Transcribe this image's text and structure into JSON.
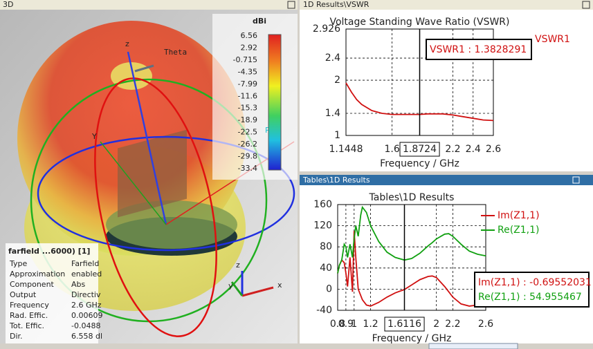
{
  "panel_3d": {
    "window_title": "3D",
    "colorbar": {
      "unit": "dBi",
      "labels": [
        6.56,
        2.92,
        -0.715,
        -4.35,
        -7.99,
        -11.6,
        -15.3,
        -18.9,
        -22.5,
        -26.2,
        -29.8,
        -33.4
      ]
    },
    "axis_labels": {
      "theta": "Theta",
      "z": "z",
      "y": "Y",
      "phi": "Phi"
    },
    "triad": {
      "z": "z",
      "y": "y",
      "x": "x"
    },
    "info": {
      "title": "farfield ...6000) [1]",
      "rows": [
        [
          "Type",
          "Farfield"
        ],
        [
          "Approximation",
          "enabled"
        ],
        [
          "Component",
          "Abs"
        ],
        [
          "Output",
          "Directiv"
        ],
        [
          "Frequency",
          "2.6 GHz"
        ],
        [
          "Rad. Effic.",
          "0.00609"
        ],
        [
          "Tot. Effic.",
          "-0.0488"
        ],
        [
          "Dir.",
          "6.558 dl"
        ]
      ]
    }
  },
  "vswr_panel": {
    "window_title": "1D Results\\VSWR",
    "chart": {
      "type": "line",
      "title": "Voltage Standing Wave Ratio (VSWR)",
      "x_label": "Frequency / GHz",
      "x": [
        1.1448,
        1.2,
        1.25,
        1.3,
        1.4,
        1.5,
        1.6,
        1.7,
        1.8,
        1.8724,
        1.95,
        2.0,
        2.1,
        2.2,
        2.3,
        2.4,
        2.5,
        2.6
      ],
      "series": [
        {
          "name": "VSWR1",
          "color": "#d01010",
          "values": [
            1.95,
            1.78,
            1.65,
            1.56,
            1.45,
            1.4,
            1.38,
            1.38,
            1.38,
            1.38,
            1.39,
            1.39,
            1.39,
            1.37,
            1.34,
            1.31,
            1.28,
            1.27
          ]
        }
      ],
      "xlim": [
        1.1448,
        2.6
      ],
      "ylim": [
        1,
        2.926
      ],
      "xticks": [
        1.1448,
        1.6,
        2.2,
        2.4,
        2.6
      ],
      "yticks": [
        1,
        1.4,
        2,
        2.4,
        2.926
      ],
      "grid": true,
      "marker_x": 1.8724,
      "readouts": [
        "VSWR1 : 1.3828291"
      ]
    }
  },
  "z_panel": {
    "window_title": "Tables\\1D Results",
    "chart": {
      "type": "line",
      "title": "Tables\\1D Results",
      "x_label": "Frequency / GHz",
      "x": [
        0.8,
        0.82,
        0.85,
        0.88,
        0.9,
        0.92,
        0.95,
        0.98,
        1.0,
        1.02,
        1.05,
        1.08,
        1.1,
        1.15,
        1.2,
        1.3,
        1.4,
        1.5,
        1.6116,
        1.7,
        1.8,
        1.9,
        1.95,
        2.0,
        2.1,
        2.15,
        2.2,
        2.3,
        2.4,
        2.5,
        2.6
      ],
      "series": [
        {
          "name": "Im(Z1,1)",
          "color": "#d01010",
          "values": [
            30,
            45,
            55,
            50,
            30,
            5,
            60,
            -5,
            110,
            60,
            0,
            -12,
            -20,
            -30,
            -32,
            -25,
            -15,
            -7,
            -0.7,
            8,
            18,
            24,
            25,
            22,
            5,
            -5,
            -15,
            -28,
            -32,
            -30,
            -30
          ]
        },
        {
          "name": "Re(Z1,1)",
          "color": "#10a010",
          "values": [
            30,
            45,
            55,
            85,
            80,
            60,
            85,
            60,
            95,
            120,
            100,
            140,
            155,
            145,
            120,
            90,
            70,
            60,
            55,
            58,
            68,
            82,
            88,
            95,
            104,
            105,
            100,
            85,
            72,
            66,
            63
          ]
        }
      ],
      "xlim": [
        0.8,
        2.6
      ],
      "ylim": [
        -40,
        160
      ],
      "xticks": [
        0.8,
        0.9,
        1,
        1.2,
        2,
        2.2,
        2.6
      ],
      "yticks": [
        -40,
        0,
        40,
        80,
        120,
        160
      ],
      "grid": true,
      "marker_x": 1.6116,
      "readouts": [
        "Im(Z1,1) : -0.69552031",
        "Re(Z1,1) : 54.955467"
      ]
    }
  }
}
